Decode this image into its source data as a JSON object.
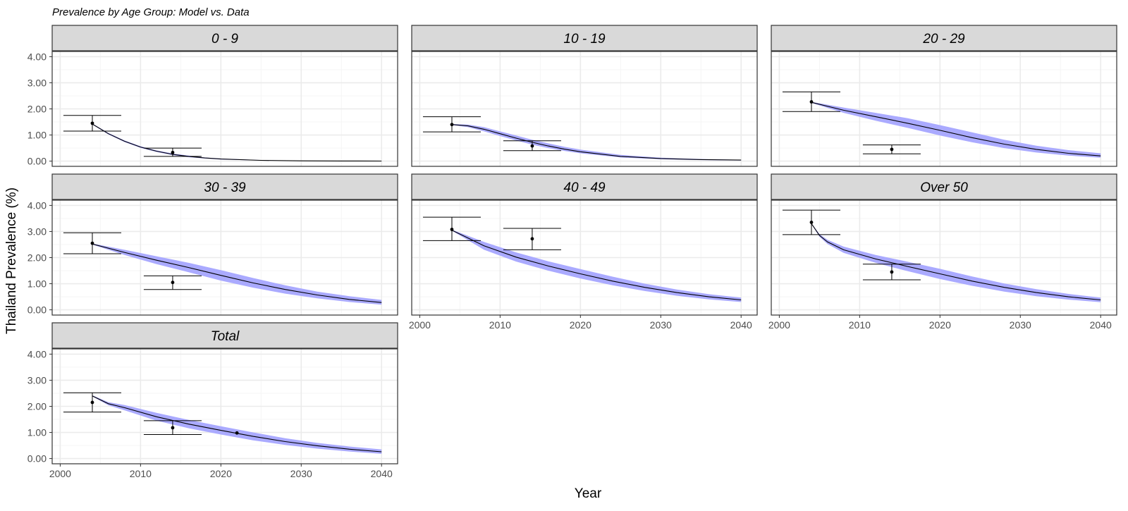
{
  "chart_data": {
    "type": "line",
    "title": "Prevalence by Age Group: Model vs. Data",
    "xlabel": "Year",
    "ylabel": "Thailand Prevalence (%)",
    "xlim": [
      1999,
      2042
    ],
    "ylim": [
      -0.2,
      4.2
    ],
    "x_ticks": [
      2000,
      2010,
      2020,
      2030,
      2040
    ],
    "y_ticks": [
      0,
      1,
      2,
      3,
      4
    ],
    "y_tick_labels": [
      "0.00",
      "1.00",
      "2.00",
      "3.00",
      "4.00"
    ],
    "grid": true,
    "colors": {
      "ribbon": "#aaaaff",
      "line": "#000000",
      "model_line_accent": "#3333cc",
      "strip_bg": "#d9d9d9",
      "panel_border": "#333333",
      "grid_major": "#ebebeb",
      "grid_minor": "#f5f5f5"
    },
    "panels": [
      {
        "label": "0 - 9",
        "model": {
          "x": [
            2004,
            2006,
            2008,
            2010,
            2012,
            2014,
            2016,
            2018,
            2020,
            2025,
            2030,
            2035,
            2040
          ],
          "y": [
            1.42,
            1.05,
            0.76,
            0.54,
            0.38,
            0.26,
            0.18,
            0.12,
            0.08,
            0.03,
            0.01,
            0.005,
            0.002
          ],
          "lower": [
            1.4,
            1.02,
            0.73,
            0.51,
            0.35,
            0.23,
            0.15,
            0.1,
            0.06,
            0.02,
            0.005,
            0.002,
            0.001
          ],
          "upper": [
            1.44,
            1.08,
            0.79,
            0.57,
            0.41,
            0.29,
            0.21,
            0.14,
            0.1,
            0.04,
            0.015,
            0.008,
            0.004
          ]
        },
        "observed": [
          {
            "x": 2004,
            "y": 1.45,
            "lower": 1.15,
            "upper": 1.75
          },
          {
            "x": 2014,
            "y": 0.33,
            "lower": 0.18,
            "upper": 0.5
          }
        ]
      },
      {
        "label": "10 - 19",
        "model": {
          "x": [
            2004,
            2006,
            2008,
            2010,
            2012,
            2014,
            2016,
            2018,
            2020,
            2025,
            2030,
            2035,
            2040
          ],
          "y": [
            1.4,
            1.35,
            1.22,
            1.05,
            0.88,
            0.72,
            0.58,
            0.46,
            0.36,
            0.18,
            0.1,
            0.06,
            0.04
          ],
          "lower": [
            1.38,
            1.3,
            1.14,
            0.96,
            0.79,
            0.63,
            0.5,
            0.39,
            0.3,
            0.14,
            0.07,
            0.04,
            0.02
          ],
          "upper": [
            1.42,
            1.4,
            1.3,
            1.14,
            0.98,
            0.82,
            0.68,
            0.55,
            0.44,
            0.24,
            0.13,
            0.08,
            0.05
          ]
        },
        "observed": [
          {
            "x": 2004,
            "y": 1.4,
            "lower": 1.12,
            "upper": 1.7
          },
          {
            "x": 2014,
            "y": 0.58,
            "lower": 0.4,
            "upper": 0.78
          }
        ]
      },
      {
        "label": "20 - 29",
        "model": {
          "x": [
            2004,
            2008,
            2012,
            2016,
            2020,
            2024,
            2028,
            2032,
            2036,
            2040
          ],
          "y": [
            2.25,
            1.95,
            1.7,
            1.45,
            1.18,
            0.9,
            0.65,
            0.45,
            0.3,
            0.2
          ],
          "lower": [
            2.23,
            1.85,
            1.55,
            1.27,
            0.98,
            0.72,
            0.5,
            0.33,
            0.21,
            0.13
          ],
          "upper": [
            2.27,
            2.05,
            1.85,
            1.64,
            1.38,
            1.1,
            0.82,
            0.59,
            0.42,
            0.3
          ]
        },
        "observed": [
          {
            "x": 2004,
            "y": 2.27,
            "lower": 1.9,
            "upper": 2.65
          },
          {
            "x": 2014,
            "y": 0.45,
            "lower": 0.28,
            "upper": 0.62
          }
        ]
      },
      {
        "label": "30 - 39",
        "model": {
          "x": [
            2004,
            2008,
            2012,
            2016,
            2020,
            2024,
            2028,
            2032,
            2036,
            2040
          ],
          "y": [
            2.52,
            2.2,
            1.9,
            1.62,
            1.32,
            1.03,
            0.78,
            0.57,
            0.4,
            0.28
          ],
          "lower": [
            2.5,
            2.1,
            1.75,
            1.44,
            1.12,
            0.85,
            0.62,
            0.44,
            0.3,
            0.2
          ],
          "upper": [
            2.54,
            2.3,
            2.05,
            1.8,
            1.52,
            1.22,
            0.94,
            0.7,
            0.52,
            0.38
          ]
        },
        "observed": [
          {
            "x": 2004,
            "y": 2.55,
            "lower": 2.15,
            "upper": 2.95
          },
          {
            "x": 2014,
            "y": 1.05,
            "lower": 0.78,
            "upper": 1.3
          }
        ]
      },
      {
        "label": "40 - 49",
        "model": {
          "x": [
            2004,
            2008,
            2012,
            2016,
            2020,
            2024,
            2028,
            2032,
            2036,
            2040
          ],
          "y": [
            3.05,
            2.45,
            2.02,
            1.68,
            1.38,
            1.1,
            0.86,
            0.66,
            0.5,
            0.38
          ],
          "lower": [
            3.03,
            2.3,
            1.85,
            1.5,
            1.2,
            0.94,
            0.72,
            0.54,
            0.4,
            0.3
          ],
          "upper": [
            3.07,
            2.6,
            2.2,
            1.86,
            1.56,
            1.27,
            1.0,
            0.78,
            0.6,
            0.47
          ]
        },
        "observed": [
          {
            "x": 2004,
            "y": 3.08,
            "lower": 2.65,
            "upper": 3.55
          },
          {
            "x": 2014,
            "y": 2.72,
            "lower": 2.3,
            "upper": 3.12
          }
        ]
      },
      {
        "label": "Over 50",
        "model": {
          "x": [
            2004,
            2005,
            2006,
            2008,
            2012,
            2016,
            2020,
            2024,
            2028,
            2032,
            2036,
            2040
          ],
          "y": [
            3.3,
            2.85,
            2.6,
            2.3,
            1.95,
            1.66,
            1.38,
            1.1,
            0.86,
            0.66,
            0.5,
            0.38
          ],
          "lower": [
            3.28,
            2.8,
            2.52,
            2.18,
            1.8,
            1.48,
            1.18,
            0.92,
            0.7,
            0.52,
            0.39,
            0.29
          ],
          "upper": [
            3.32,
            2.9,
            2.68,
            2.42,
            2.1,
            1.84,
            1.57,
            1.28,
            1.01,
            0.79,
            0.61,
            0.47
          ]
        },
        "observed": [
          {
            "x": 2004,
            "y": 3.35,
            "lower": 2.88,
            "upper": 3.82
          },
          {
            "x": 2014,
            "y": 1.45,
            "lower": 1.15,
            "upper": 1.75
          }
        ]
      },
      {
        "label": "Total",
        "model": {
          "x": [
            2004,
            2006,
            2008,
            2012,
            2016,
            2020,
            2024,
            2028,
            2032,
            2036,
            2040
          ],
          "y": [
            2.4,
            2.1,
            1.95,
            1.6,
            1.32,
            1.08,
            0.85,
            0.65,
            0.49,
            0.36,
            0.26
          ],
          "lower": [
            2.38,
            2.04,
            1.85,
            1.45,
            1.16,
            0.92,
            0.7,
            0.52,
            0.38,
            0.27,
            0.18
          ],
          "upper": [
            2.42,
            2.16,
            2.05,
            1.75,
            1.48,
            1.24,
            1.0,
            0.78,
            0.6,
            0.46,
            0.35
          ]
        },
        "observed": [
          {
            "x": 2004,
            "y": 2.15,
            "lower": 1.78,
            "upper": 2.52
          },
          {
            "x": 2014,
            "y": 1.18,
            "lower": 0.92,
            "upper": 1.45
          },
          {
            "x": 2022,
            "y": 0.98,
            "lower": 0.98,
            "upper": 0.98
          }
        ]
      }
    ]
  }
}
